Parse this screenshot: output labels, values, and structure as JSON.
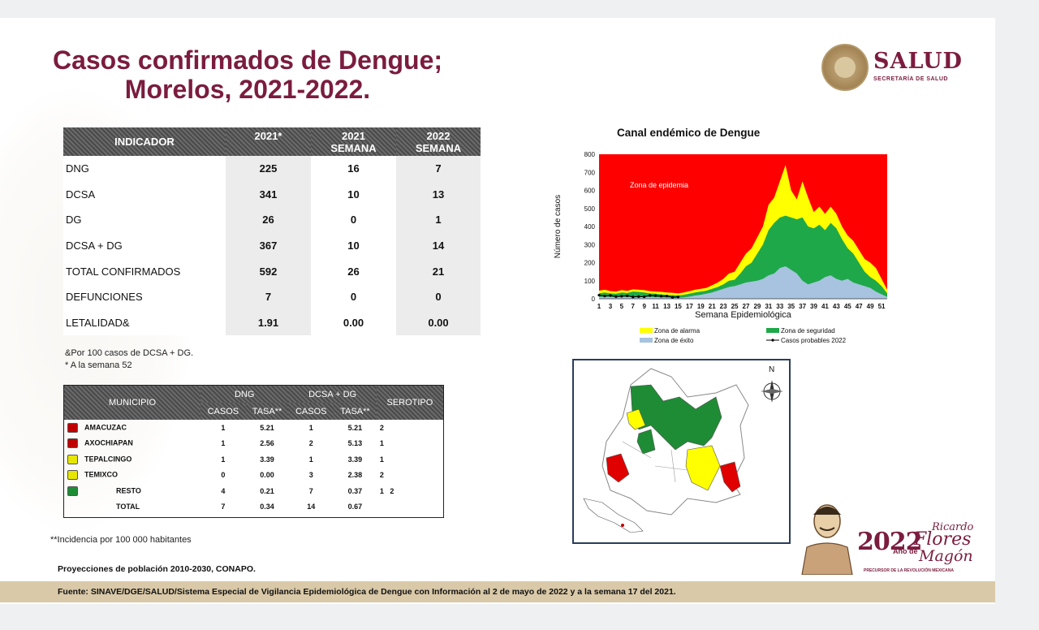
{
  "title_line1": "Casos confirmados de Dengue;",
  "title_line2": "Morelos, 2021-2022.",
  "logo": {
    "name": "SALUD",
    "subtitle": "SECRETARÍA DE SALUD"
  },
  "indicator_table": {
    "headers": [
      "INDICADOR",
      "2021*",
      "2021 SEMANA",
      "2022 SEMANA"
    ],
    "rows": [
      {
        "label": "DNG",
        "v2021": "225",
        "sem2021": "16",
        "sem2022": "7"
      },
      {
        "label": "DCSA",
        "v2021": "341",
        "sem2021": "10",
        "sem2022": "13"
      },
      {
        "label": "DG",
        "v2021": "26",
        "sem2021": "0",
        "sem2022": "1"
      },
      {
        "label": "DCSA + DG",
        "v2021": "367",
        "sem2021": "10",
        "sem2022": "14"
      },
      {
        "label": "TOTAL CONFIRMADOS",
        "v2021": "592",
        "sem2021": "26",
        "sem2022": "21"
      },
      {
        "label": "DEFUNCIONES",
        "v2021": "7",
        "sem2021": "0",
        "sem2022": "0"
      },
      {
        "label": "LETALIDAD&",
        "v2021": "1.91",
        "sem2021": "0.00",
        "sem2022": "0.00"
      }
    ]
  },
  "notes": [
    "&Por 100 casos de DCSA + DG.",
    "* A la semana 52"
  ],
  "municipio_table": {
    "header_municipio": "MUNICIPIO",
    "header_dng": "DNG",
    "header_dcsa": "DCSA + DG",
    "header_serotipo": "SEROTIPO",
    "sub_casos": "CASOS",
    "sub_tasa": "TASA**",
    "rows": [
      {
        "name": "AMACUZAC",
        "color": "#c00000",
        "dng_casos": "1",
        "dng_tasa": "5.21",
        "dcsa_casos": "1",
        "dcsa_tasa": "5.21",
        "serotipo": "2"
      },
      {
        "name": "AXOCHIAPAN",
        "color": "#c00000",
        "dng_casos": "1",
        "dng_tasa": "2.56",
        "dcsa_casos": "2",
        "dcsa_tasa": "5.13",
        "serotipo": "1"
      },
      {
        "name": "TEPALCINGO",
        "color": "#e6e600",
        "dng_casos": "1",
        "dng_tasa": "3.39",
        "dcsa_casos": "1",
        "dcsa_tasa": "3.39",
        "serotipo": "1"
      },
      {
        "name": "TEMIXCO",
        "color": "#e6e600",
        "dng_casos": "0",
        "dng_tasa": "0.00",
        "dcsa_casos": "3",
        "dcsa_tasa": "2.38",
        "serotipo": "2"
      },
      {
        "name": "RESTO",
        "color": "#1e8c35",
        "dng_casos": "4",
        "dng_tasa": "0.21",
        "dcsa_casos": "7",
        "dcsa_tasa": "0.37",
        "serotipo": "1   2"
      },
      {
        "name": "TOTAL",
        "color": "",
        "dng_casos": "7",
        "dng_tasa": "0.34",
        "dcsa_casos": "14",
        "dcsa_tasa": "0.67",
        "serotipo": ""
      }
    ]
  },
  "incidencia_note": "**Incidencia por 100 000 habitantes",
  "proyecciones": "Proyecciones de población 2010-2030,  CONAPO.",
  "fuente": "Fuente: SINAVE/DGE/SALUD/Sistema Especial de Vigilancia Epidemiológica de Dengue con Información al 2 de mayo de 2022 y a la semana 17 del 2021.",
  "chart_data": {
    "type": "area",
    "title": "Canal endémico de Dengue",
    "xlabel": "Semana Epidemiológica",
    "ylabel": "Número de casos",
    "ylim": [
      0,
      800
    ],
    "yticks": [
      0,
      100,
      200,
      300,
      400,
      500,
      600,
      700,
      800
    ],
    "x": [
      1,
      2,
      3,
      4,
      5,
      6,
      7,
      8,
      9,
      10,
      11,
      12,
      13,
      14,
      15,
      16,
      17,
      18,
      19,
      20,
      21,
      22,
      23,
      24,
      25,
      26,
      27,
      28,
      29,
      30,
      31,
      32,
      33,
      34,
      35,
      36,
      37,
      38,
      39,
      40,
      41,
      42,
      43,
      44,
      45,
      46,
      47,
      48,
      49,
      50,
      51,
      52
    ],
    "xtick_labels": [
      "1",
      "3",
      "5",
      "7",
      "9",
      "11",
      "13",
      "15",
      "17",
      "19",
      "21",
      "23",
      "25",
      "27",
      "29",
      "31",
      "33",
      "35",
      "37",
      "39",
      "41",
      "43",
      "45",
      "47",
      "49",
      "51"
    ],
    "annotation": "Zona de epidemia",
    "background_zone_color": "#ff0000",
    "series": [
      {
        "name": "Zona de alarma",
        "color": "#ffff00",
        "values": [
          45,
          50,
          42,
          40,
          48,
          44,
          52,
          50,
          48,
          42,
          40,
          38,
          35,
          33,
          30,
          35,
          42,
          50,
          55,
          60,
          75,
          90,
          110,
          140,
          150,
          200,
          250,
          280,
          340,
          400,
          520,
          560,
          650,
          740,
          600,
          550,
          650,
          560,
          480,
          510,
          470,
          510,
          470,
          400,
          350,
          320,
          270,
          220,
          200,
          170,
          110,
          50
        ]
      },
      {
        "name": "Zona de seguridad",
        "color": "#1fa84a",
        "values": [
          30,
          35,
          30,
          28,
          35,
          32,
          40,
          38,
          35,
          30,
          28,
          25,
          22,
          20,
          18,
          22,
          28,
          35,
          40,
          45,
          55,
          65,
          80,
          100,
          105,
          140,
          180,
          200,
          250,
          300,
          380,
          420,
          450,
          460,
          450,
          440,
          450,
          400,
          390,
          410,
          380,
          420,
          390,
          330,
          280,
          250,
          200,
          150,
          120,
          100,
          70,
          30
        ]
      },
      {
        "name": "Zona de éxito",
        "color": "#a7c3e0",
        "values": [
          10,
          12,
          10,
          9,
          12,
          10,
          14,
          13,
          12,
          10,
          9,
          8,
          7,
          6,
          5,
          8,
          12,
          18,
          22,
          28,
          35,
          45,
          55,
          65,
          70,
          80,
          90,
          95,
          100,
          110,
          130,
          140,
          170,
          180,
          160,
          140,
          100,
          80,
          90,
          100,
          120,
          130,
          110,
          100,
          110,
          90,
          80,
          70,
          60,
          40,
          25,
          10
        ]
      },
      {
        "name": "Casos probables 2022",
        "color": "#000000",
        "values": [
          20,
          15,
          18,
          12,
          14,
          16,
          10,
          12,
          11,
          18,
          17,
          14,
          15,
          8,
          10,
          null,
          null,
          null,
          null,
          null,
          null,
          null,
          null,
          null,
          null,
          null,
          null,
          null,
          null,
          null,
          null,
          null,
          null,
          null,
          null,
          null,
          null,
          null,
          null,
          null,
          null,
          null,
          null,
          null,
          null,
          null,
          null,
          null,
          null,
          null,
          null,
          null
        ]
      }
    ],
    "legend_placement": "bottom"
  },
  "map": {
    "compass_label": "N"
  },
  "logo_2022": {
    "year": "2022",
    "line1": "Ricardo",
    "line2": "Flores",
    "line3": "Magón",
    "ano_de": "Año de",
    "precursor": "PRECURSOR DE LA REVOLUCIÓN MEXICANA"
  }
}
